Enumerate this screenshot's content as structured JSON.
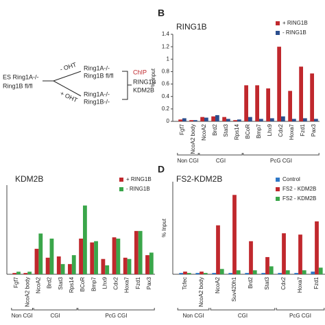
{
  "diagram": {
    "start_line1": "ES Ring1A-/-",
    "start_line2": "Ring1B fl/fl",
    "minus_oht": "- OHT",
    "plus_oht": "+ OHT",
    "minus_line1": "Ring1A-/-",
    "minus_line2": "Ring1B fl/fl",
    "plus_line1": "Ring1A-/-",
    "plus_line2": "Ring1B-/-",
    "chip": "ChIP",
    "chip_target1": "RING1B",
    "chip_target2": "KDM2B"
  },
  "chart_data": [
    {
      "type": "bar",
      "panel": "B",
      "title": "RING1B",
      "y_label": "% Input",
      "groups": [
        {
          "label": "Non CGI",
          "categories": [
            "Fgf7",
            "NcoA2 body"
          ]
        },
        {
          "label": "CGI",
          "categories": [
            "NcoA2",
            "Brd2",
            "Stat3",
            "Rps14"
          ]
        },
        {
          "label": "PcG CGI",
          "categories": [
            "BCoR",
            "Bmp7",
            "Lhx9",
            "Cdx2",
            "Hoxa7",
            "Fzd1",
            "Pax3"
          ]
        }
      ],
      "series": [
        {
          "name": "+ RING1B",
          "color": "#c0282d",
          "values": [
            0.03,
            0.02,
            0.07,
            0.08,
            0.07,
            0.02,
            0.58,
            0.58,
            0.53,
            1.2,
            0.49,
            0.88,
            0.77
          ]
        },
        {
          "name": "- RING1B",
          "color": "#2b4f8e",
          "values": [
            0.05,
            0.02,
            0.06,
            0.1,
            0.04,
            0.03,
            0.07,
            0.04,
            0.05,
            0.08,
            0.04,
            0.05,
            0.04
          ]
        }
      ],
      "ylim": [
        0,
        1.4
      ],
      "yticks": [
        0,
        0.2,
        0.4,
        0.6,
        0.8,
        1,
        1.2,
        1.4
      ]
    },
    {
      "type": "bar",
      "title": "KDM2B",
      "groups": [
        {
          "label": "Non CGI",
          "categories": [
            "Fgf7",
            "NcoA2 body"
          ]
        },
        {
          "label": "CGI",
          "categories": [
            "NcoA2",
            "Brd2",
            "Stat3",
            "Rps14"
          ]
        },
        {
          "label": "PcG CGI",
          "categories": [
            "BCoR",
            "Bmp7",
            "Lhx9",
            "Cdx2",
            "Hoxa7",
            "Fzd1",
            "Pax3"
          ]
        }
      ],
      "series": [
        {
          "name": "+ RING1B",
          "color": "#c0282d",
          "values": [
            0.05,
            0.05,
            1.0,
            0.65,
            0.7,
            0.4,
            1.4,
            1.25,
            0.6,
            1.45,
            0.65,
            1.7,
            0.75
          ]
        },
        {
          "name": "- RING1B",
          "color": "#3aa64a",
          "values": [
            0.1,
            0.1,
            1.6,
            1.4,
            0.4,
            0.75,
            2.7,
            1.3,
            0.35,
            1.4,
            0.6,
            1.7,
            0.85
          ]
        }
      ],
      "ylim": [
        0,
        3.5
      ]
    },
    {
      "type": "bar",
      "panel": "D",
      "title": "FS2-KDM2B",
      "y_label": "% Input",
      "groups": [
        {
          "label": "Non CGI",
          "categories": [
            "Tcfec",
            "NcoA2 body"
          ]
        },
        {
          "label": "CGI",
          "categories": [
            "NcoA2",
            "Suv420h1",
            "Brd2",
            "Stat3"
          ]
        },
        {
          "label": "PcG CGI",
          "categories": [
            "Cdx2",
            "Hoxa7",
            "Fzd1"
          ]
        }
      ],
      "series": [
        {
          "name": "Control",
          "color": "#2e78c7",
          "values": [
            0.01,
            0.01,
            0.01,
            0.01,
            0.01,
            0.01,
            0.01,
            0.01,
            0.02
          ]
        },
        {
          "name": "FS2 - KDM2B",
          "color": "#c0282d",
          "values": [
            0.02,
            0.02,
            0.37,
            0.6,
            0.25,
            0.13,
            0.31,
            0.3,
            0.4
          ]
        },
        {
          "name": "FS2 - KDM2B",
          "color": "#3aa64a",
          "values": [
            0.01,
            0.01,
            0.04,
            0.03,
            0.03,
            0.06,
            0.03,
            0.03,
            0.05
          ]
        }
      ],
      "ylim": [
        0,
        0.7
      ]
    }
  ]
}
